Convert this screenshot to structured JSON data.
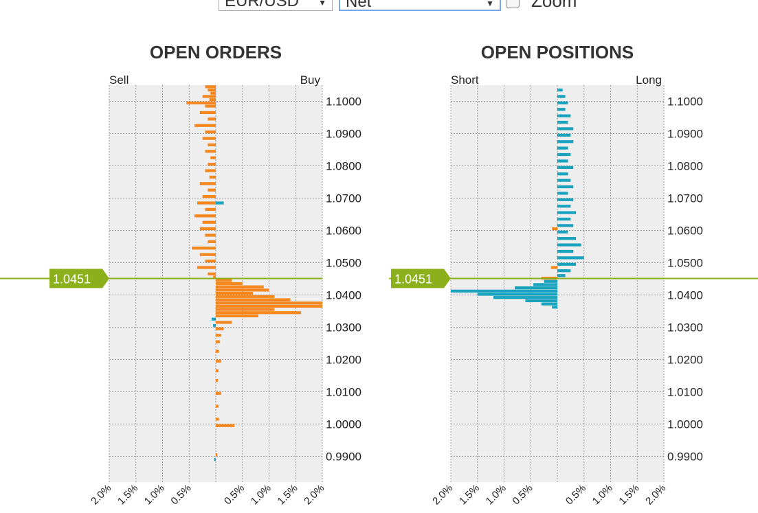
{
  "controls": {
    "pair": "EUR/USD",
    "mode": "Net",
    "zoom_label": "Zoom",
    "zoom_checked": false
  },
  "colors": {
    "orders": "#f5871f",
    "positions": "#18a2be",
    "current_price": "#8bb01c",
    "plot_bg": "#eeeeee"
  },
  "chart_data": [
    {
      "type": "bar",
      "orientation": "horizontal",
      "title": "OPEN ORDERS",
      "left_label": "Sell",
      "right_label": "Buy",
      "current_price": "1.0451",
      "current_price_value": 1.0451,
      "ylim": [
        0.982,
        1.105
      ],
      "xlim": [
        -2.0,
        2.0
      ],
      "y_ticks": [
        "1.1000",
        "1.0900",
        "1.0800",
        "1.0700",
        "1.0600",
        "1.0500",
        "1.0400",
        "1.0300",
        "1.0200",
        "1.0100",
        "1.0000",
        "0.9900"
      ],
      "x_ticks": [
        "2.0%",
        "1.5%",
        "1.0%",
        "0.5%",
        "",
        "0.5%",
        "1.0%",
        "1.5%",
        "2.0%"
      ],
      "grid": true,
      "series": [
        {
          "color_key": "orders",
          "points": [
            {
              "y": 1.1045,
              "v": -0.2
            },
            {
              "y": 1.1035,
              "v": -0.15
            },
            {
              "y": 1.1025,
              "v": -0.1
            },
            {
              "y": 1.1015,
              "v": -0.25
            },
            {
              "y": 1.1005,
              "v": -0.12
            },
            {
              "y": 1.0995,
              "v": -0.55
            },
            {
              "y": 1.0985,
              "v": -0.2
            },
            {
              "y": 1.0965,
              "v": -0.3
            },
            {
              "y": 1.0945,
              "v": -0.15
            },
            {
              "y": 1.0925,
              "v": -0.4
            },
            {
              "y": 1.0905,
              "v": -0.2
            },
            {
              "y": 1.0885,
              "v": -0.25
            },
            {
              "y": 1.0865,
              "v": -0.15
            },
            {
              "y": 1.0845,
              "v": -0.2
            },
            {
              "y": 1.0825,
              "v": -0.1
            },
            {
              "y": 1.0805,
              "v": -0.15
            },
            {
              "y": 1.0785,
              "v": -0.2
            },
            {
              "y": 1.0765,
              "v": -0.12
            },
            {
              "y": 1.0745,
              "v": -0.3
            },
            {
              "y": 1.0725,
              "v": -0.15
            },
            {
              "y": 1.0705,
              "v": -0.25
            },
            {
              "y": 1.0685,
              "v": -0.35
            },
            {
              "y": 1.0665,
              "v": -0.2
            },
            {
              "y": 1.0645,
              "v": -0.4
            },
            {
              "y": 1.0625,
              "v": -0.25
            },
            {
              "y": 1.0605,
              "v": -0.3
            },
            {
              "y": 1.0585,
              "v": -0.2
            },
            {
              "y": 1.0565,
              "v": -0.15
            },
            {
              "y": 1.0545,
              "v": -0.45
            },
            {
              "y": 1.0525,
              "v": -0.3
            },
            {
              "y": 1.0505,
              "v": -0.2
            },
            {
              "y": 1.0485,
              "v": -0.35
            },
            {
              "y": 1.0465,
              "v": -0.15
            },
            {
              "y": 1.0455,
              "v": -0.05
            },
            {
              "y": 1.0445,
              "v": 0.3
            },
            {
              "y": 1.0435,
              "v": 0.5
            },
            {
              "y": 1.0425,
              "v": 0.9
            },
            {
              "y": 1.0415,
              "v": 1.0
            },
            {
              "y": 1.0405,
              "v": 0.7
            },
            {
              "y": 1.0395,
              "v": 1.1
            },
            {
              "y": 1.0385,
              "v": 1.4
            },
            {
              "y": 1.0375,
              "v": 2.0
            },
            {
              "y": 1.0365,
              "v": 2.0
            },
            {
              "y": 1.0355,
              "v": 1.1
            },
            {
              "y": 1.0345,
              "v": 1.6
            },
            {
              "y": 1.0335,
              "v": 0.8
            },
            {
              "y": 1.0315,
              "v": 0.3
            },
            {
              "y": 1.0295,
              "v": 0.15
            },
            {
              "y": 1.0275,
              "v": 0.1
            },
            {
              "y": 1.0255,
              "v": 0.08
            },
            {
              "y": 1.0225,
              "v": 0.06
            },
            {
              "y": 1.0195,
              "v": 0.1
            },
            {
              "y": 1.0165,
              "v": 0.05
            },
            {
              "y": 1.0135,
              "v": 0.04
            },
            {
              "y": 1.0095,
              "v": 0.1
            },
            {
              "y": 1.0055,
              "v": 0.05
            },
            {
              "y": 1.0015,
              "v": 0.06
            },
            {
              "y": 0.9995,
              "v": 0.35
            },
            {
              "y": 0.9905,
              "v": 0.03
            }
          ]
        },
        {
          "color_key": "positions",
          "points": [
            {
              "y": 1.0685,
              "v": 0.15
            },
            {
              "y": 1.0325,
              "v": -0.08
            },
            {
              "y": 1.0305,
              "v": -0.05
            },
            {
              "y": 0.989,
              "v": -0.03
            }
          ]
        }
      ]
    },
    {
      "type": "bar",
      "orientation": "horizontal",
      "title": "OPEN POSITIONS",
      "left_label": "Short",
      "right_label": "Long",
      "current_price": "1.0451",
      "current_price_value": 1.0451,
      "ylim": [
        0.982,
        1.105
      ],
      "xlim": [
        -2.0,
        2.0
      ],
      "y_ticks": [
        "1.1000",
        "1.0900",
        "1.0800",
        "1.0700",
        "1.0600",
        "1.0500",
        "1.0400",
        "1.0300",
        "1.0200",
        "1.0100",
        "1.0000",
        "0.9900"
      ],
      "x_ticks": [
        "2.0%",
        "1.5%",
        "1.0%",
        "0.5%",
        "",
        "0.5%",
        "1.0%",
        "1.5%",
        "2.0%"
      ],
      "grid": true,
      "series": [
        {
          "color_key": "positions",
          "points": [
            {
              "y": 1.1035,
              "v": 0.1
            },
            {
              "y": 1.1015,
              "v": 0.15
            },
            {
              "y": 1.0995,
              "v": 0.2
            },
            {
              "y": 1.0975,
              "v": 0.15
            },
            {
              "y": 1.0955,
              "v": 0.25
            },
            {
              "y": 1.0935,
              "v": 0.2
            },
            {
              "y": 1.0915,
              "v": 0.3
            },
            {
              "y": 1.0895,
              "v": 0.25
            },
            {
              "y": 1.0875,
              "v": 0.3
            },
            {
              "y": 1.0855,
              "v": 0.2
            },
            {
              "y": 1.0835,
              "v": 0.25
            },
            {
              "y": 1.0815,
              "v": 0.2
            },
            {
              "y": 1.0795,
              "v": 0.3
            },
            {
              "y": 1.0775,
              "v": 0.2
            },
            {
              "y": 1.0755,
              "v": 0.25
            },
            {
              "y": 1.0735,
              "v": 0.3
            },
            {
              "y": 1.0715,
              "v": 0.2
            },
            {
              "y": 1.0695,
              "v": 0.3
            },
            {
              "y": 1.0675,
              "v": 0.25
            },
            {
              "y": 1.0655,
              "v": 0.35
            },
            {
              "y": 1.0635,
              "v": 0.25
            },
            {
              "y": 1.0615,
              "v": 0.3
            },
            {
              "y": 1.0595,
              "v": 0.2
            },
            {
              "y": 1.0575,
              "v": 0.35
            },
            {
              "y": 1.0555,
              "v": 0.45
            },
            {
              "y": 1.0535,
              "v": 0.3
            },
            {
              "y": 1.0515,
              "v": 0.5
            },
            {
              "y": 1.0495,
              "v": 0.35
            },
            {
              "y": 1.0475,
              "v": 0.25
            },
            {
              "y": 1.046,
              "v": 0.15
            },
            {
              "y": 1.0442,
              "v": -0.25
            },
            {
              "y": 1.0432,
              "v": -0.45
            },
            {
              "y": 1.0422,
              "v": -0.8
            },
            {
              "y": 1.0412,
              "v": -2.0
            },
            {
              "y": 1.0402,
              "v": -1.5
            },
            {
              "y": 1.0392,
              "v": -1.2
            },
            {
              "y": 1.0382,
              "v": -0.6
            },
            {
              "y": 1.0372,
              "v": -0.3
            },
            {
              "y": 1.0362,
              "v": -0.1
            }
          ]
        },
        {
          "color_key": "orders",
          "points": [
            {
              "y": 1.0605,
              "v": -0.1
            },
            {
              "y": 1.0485,
              "v": -0.12
            },
            {
              "y": 1.0452,
              "v": -0.3
            }
          ]
        }
      ]
    }
  ]
}
